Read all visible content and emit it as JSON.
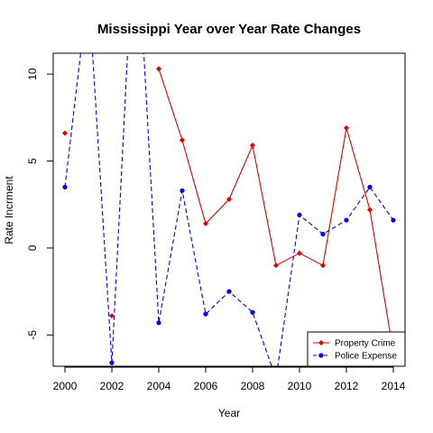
{
  "chart_data": {
    "type": "line",
    "title": "Mississippi Year over Year Rate Changes",
    "xlabel": "Year",
    "ylabel": "Rate Incrment",
    "xlim": [
      1999.5,
      2014.5
    ],
    "ylim": [
      -6.8,
      11.2
    ],
    "x_ticks": [
      2000,
      2002,
      2004,
      2006,
      2008,
      2010,
      2012,
      2014
    ],
    "y_ticks": [
      -5,
      0,
      5,
      10
    ],
    "grid": false,
    "legend_position": "bottom-right",
    "series": [
      {
        "name": "Property Crime",
        "color": "#dd0000",
        "line_style": "solid",
        "marker": "diamond",
        "points": [
          {
            "x": 2000,
            "y": 6.6
          },
          {
            "x": 2001,
            "y": null
          },
          {
            "x": 2002,
            "y": -3.9
          },
          {
            "x": 2003,
            "y": null
          },
          {
            "x": 2004,
            "y": 10.3
          },
          {
            "x": 2005,
            "y": 6.2
          },
          {
            "x": 2006,
            "y": 1.4
          },
          {
            "x": 2007,
            "y": 2.8
          },
          {
            "x": 2008,
            "y": 5.9
          },
          {
            "x": 2009,
            "y": -1.0
          },
          {
            "x": 2010,
            "y": -0.3
          },
          {
            "x": 2011,
            "y": -1.0
          },
          {
            "x": 2012,
            "y": 6.9
          },
          {
            "x": 2013,
            "y": 2.2
          },
          {
            "x": 2014,
            "y": -6.0
          }
        ]
      },
      {
        "name": "Police Expense",
        "color": "#0000ee",
        "line_style": "dashed",
        "marker": "circle",
        "points": [
          {
            "x": 2000,
            "y": 3.5
          },
          {
            "x": 2001,
            "y": 15.0
          },
          {
            "x": 2002,
            "y": -6.6
          },
          {
            "x": 2003,
            "y": 20.0
          },
          {
            "x": 2004,
            "y": -4.3
          },
          {
            "x": 2005,
            "y": 3.3
          },
          {
            "x": 2006,
            "y": -3.8
          },
          {
            "x": 2007,
            "y": -2.5
          },
          {
            "x": 2008,
            "y": -3.7
          },
          {
            "x": 2009,
            "y": -7.5
          },
          {
            "x": 2010,
            "y": 1.9
          },
          {
            "x": 2011,
            "y": 0.8
          },
          {
            "x": 2012,
            "y": 1.6
          },
          {
            "x": 2013,
            "y": 3.5
          },
          {
            "x": 2014,
            "y": 1.6
          }
        ]
      }
    ]
  }
}
